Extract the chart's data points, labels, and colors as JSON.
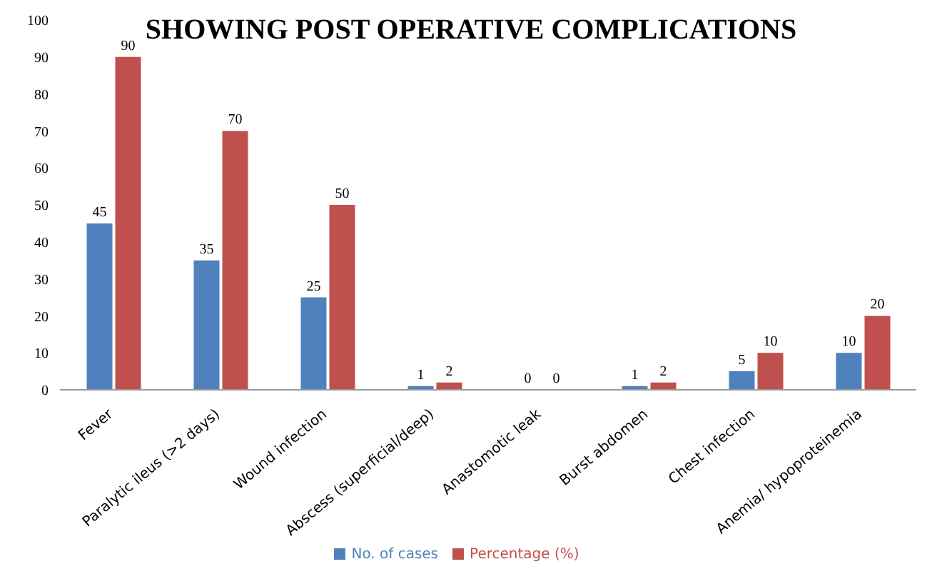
{
  "chart_data": {
    "type": "bar",
    "title": "SHOWING POST OPERATIVE COMPLICATIONS",
    "categories": [
      "Fever",
      "Paralytic ileus (>2 days)",
      "Wound infection",
      "Abscess (superficial/deep)",
      "Anastomotic leak",
      "Burst abdomen",
      "Chest infection",
      "Anemia/ hypoproteinemia"
    ],
    "series": [
      {
        "name": "No. of cases",
        "color": "#4f81bd",
        "values": [
          45,
          35,
          25,
          1,
          0,
          1,
          5,
          10
        ]
      },
      {
        "name": "Percentage (%)",
        "color": "#c0504d",
        "values": [
          90,
          70,
          50,
          2,
          0,
          2,
          10,
          20
        ]
      }
    ],
    "ylim": [
      0,
      100
    ],
    "yticks": [
      0,
      10,
      20,
      30,
      40,
      50,
      60,
      70,
      80,
      90,
      100
    ],
    "grid": false,
    "legend": "bottom",
    "data_labels": true
  }
}
